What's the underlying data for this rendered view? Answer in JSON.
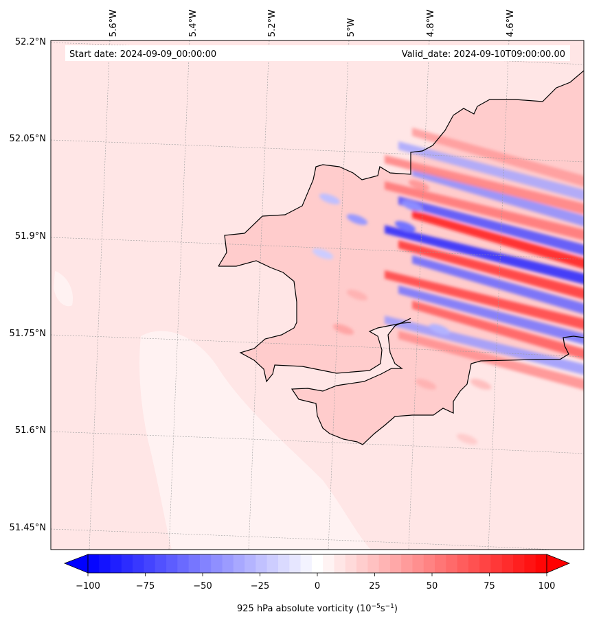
{
  "header": {
    "start_date": "Start date: 2024-09-09_00:00:00",
    "valid_date": "Valid_date: 2024-09-10T09:00:00.00"
  },
  "map": {
    "projection": "lambert-conformal",
    "lon_labels": [
      "5.6°W",
      "5.4°W",
      "5.2°W",
      "5°W",
      "4.8°W",
      "4.6°W"
    ],
    "lat_labels": [
      "52.2°N",
      "52.05°N",
      "51.9°N",
      "51.75°N",
      "51.6°N",
      "51.45°N"
    ],
    "gridlines": "dashed-grey",
    "coastline_color": "#000000",
    "field": "925 hPa absolute vorticity",
    "background_level": 10,
    "features": [
      {
        "name": "sea-background",
        "level": 10
      },
      {
        "name": "weak-sea-band",
        "level": 5
      },
      {
        "name": "land-positive-vorticity",
        "level": 20
      },
      {
        "name": "strong-wave-bands-east",
        "level_range": [
          -100,
          100
        ]
      }
    ]
  },
  "colorbar": {
    "title_main": "925 hPa absolute vorticity (10",
    "title_exp1": "−5",
    "title_mid": "s",
    "title_exp2": "−1",
    "title_end": ")",
    "tick_labels": [
      "−100",
      "−75",
      "−50",
      "−25",
      "0",
      "25",
      "50",
      "75",
      "100"
    ],
    "tick_values": [
      -100,
      -75,
      -50,
      -25,
      0,
      25,
      50,
      75,
      100
    ],
    "range": [
      -100,
      100
    ],
    "levels": 41,
    "extend": "both",
    "colormap": "bwr",
    "color_low": "#0000ff",
    "color_mid": "#ffffff",
    "color_high": "#ff0000"
  }
}
